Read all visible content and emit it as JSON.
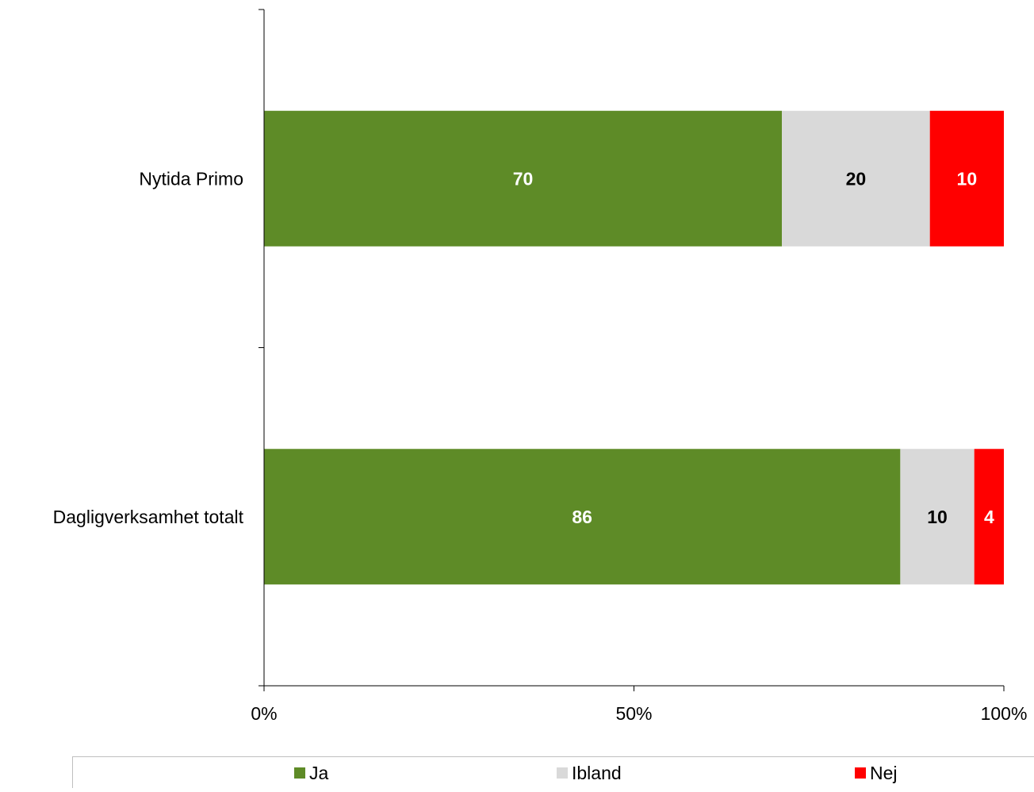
{
  "chart_data": {
    "type": "bar",
    "orientation": "horizontal",
    "stacked": "percent",
    "categories": [
      "Nytida Primo",
      "Dagligverksamhet totalt"
    ],
    "series": [
      {
        "name": "Ja",
        "values": [
          70,
          86
        ],
        "color": "#5e8b27",
        "label_color": "#ffffff"
      },
      {
        "name": "Ibland",
        "values": [
          20,
          10
        ],
        "color": "#d9d9d9",
        "label_color": "#000000"
      },
      {
        "name": "Nej",
        "values": [
          10,
          4
        ],
        "color": "#ff0000",
        "label_color": "#ffffff"
      }
    ],
    "x_ticks": [
      "0%",
      "50%",
      "100%"
    ],
    "xlim": [
      0,
      100
    ],
    "grid": false,
    "legend_position": "bottom"
  }
}
